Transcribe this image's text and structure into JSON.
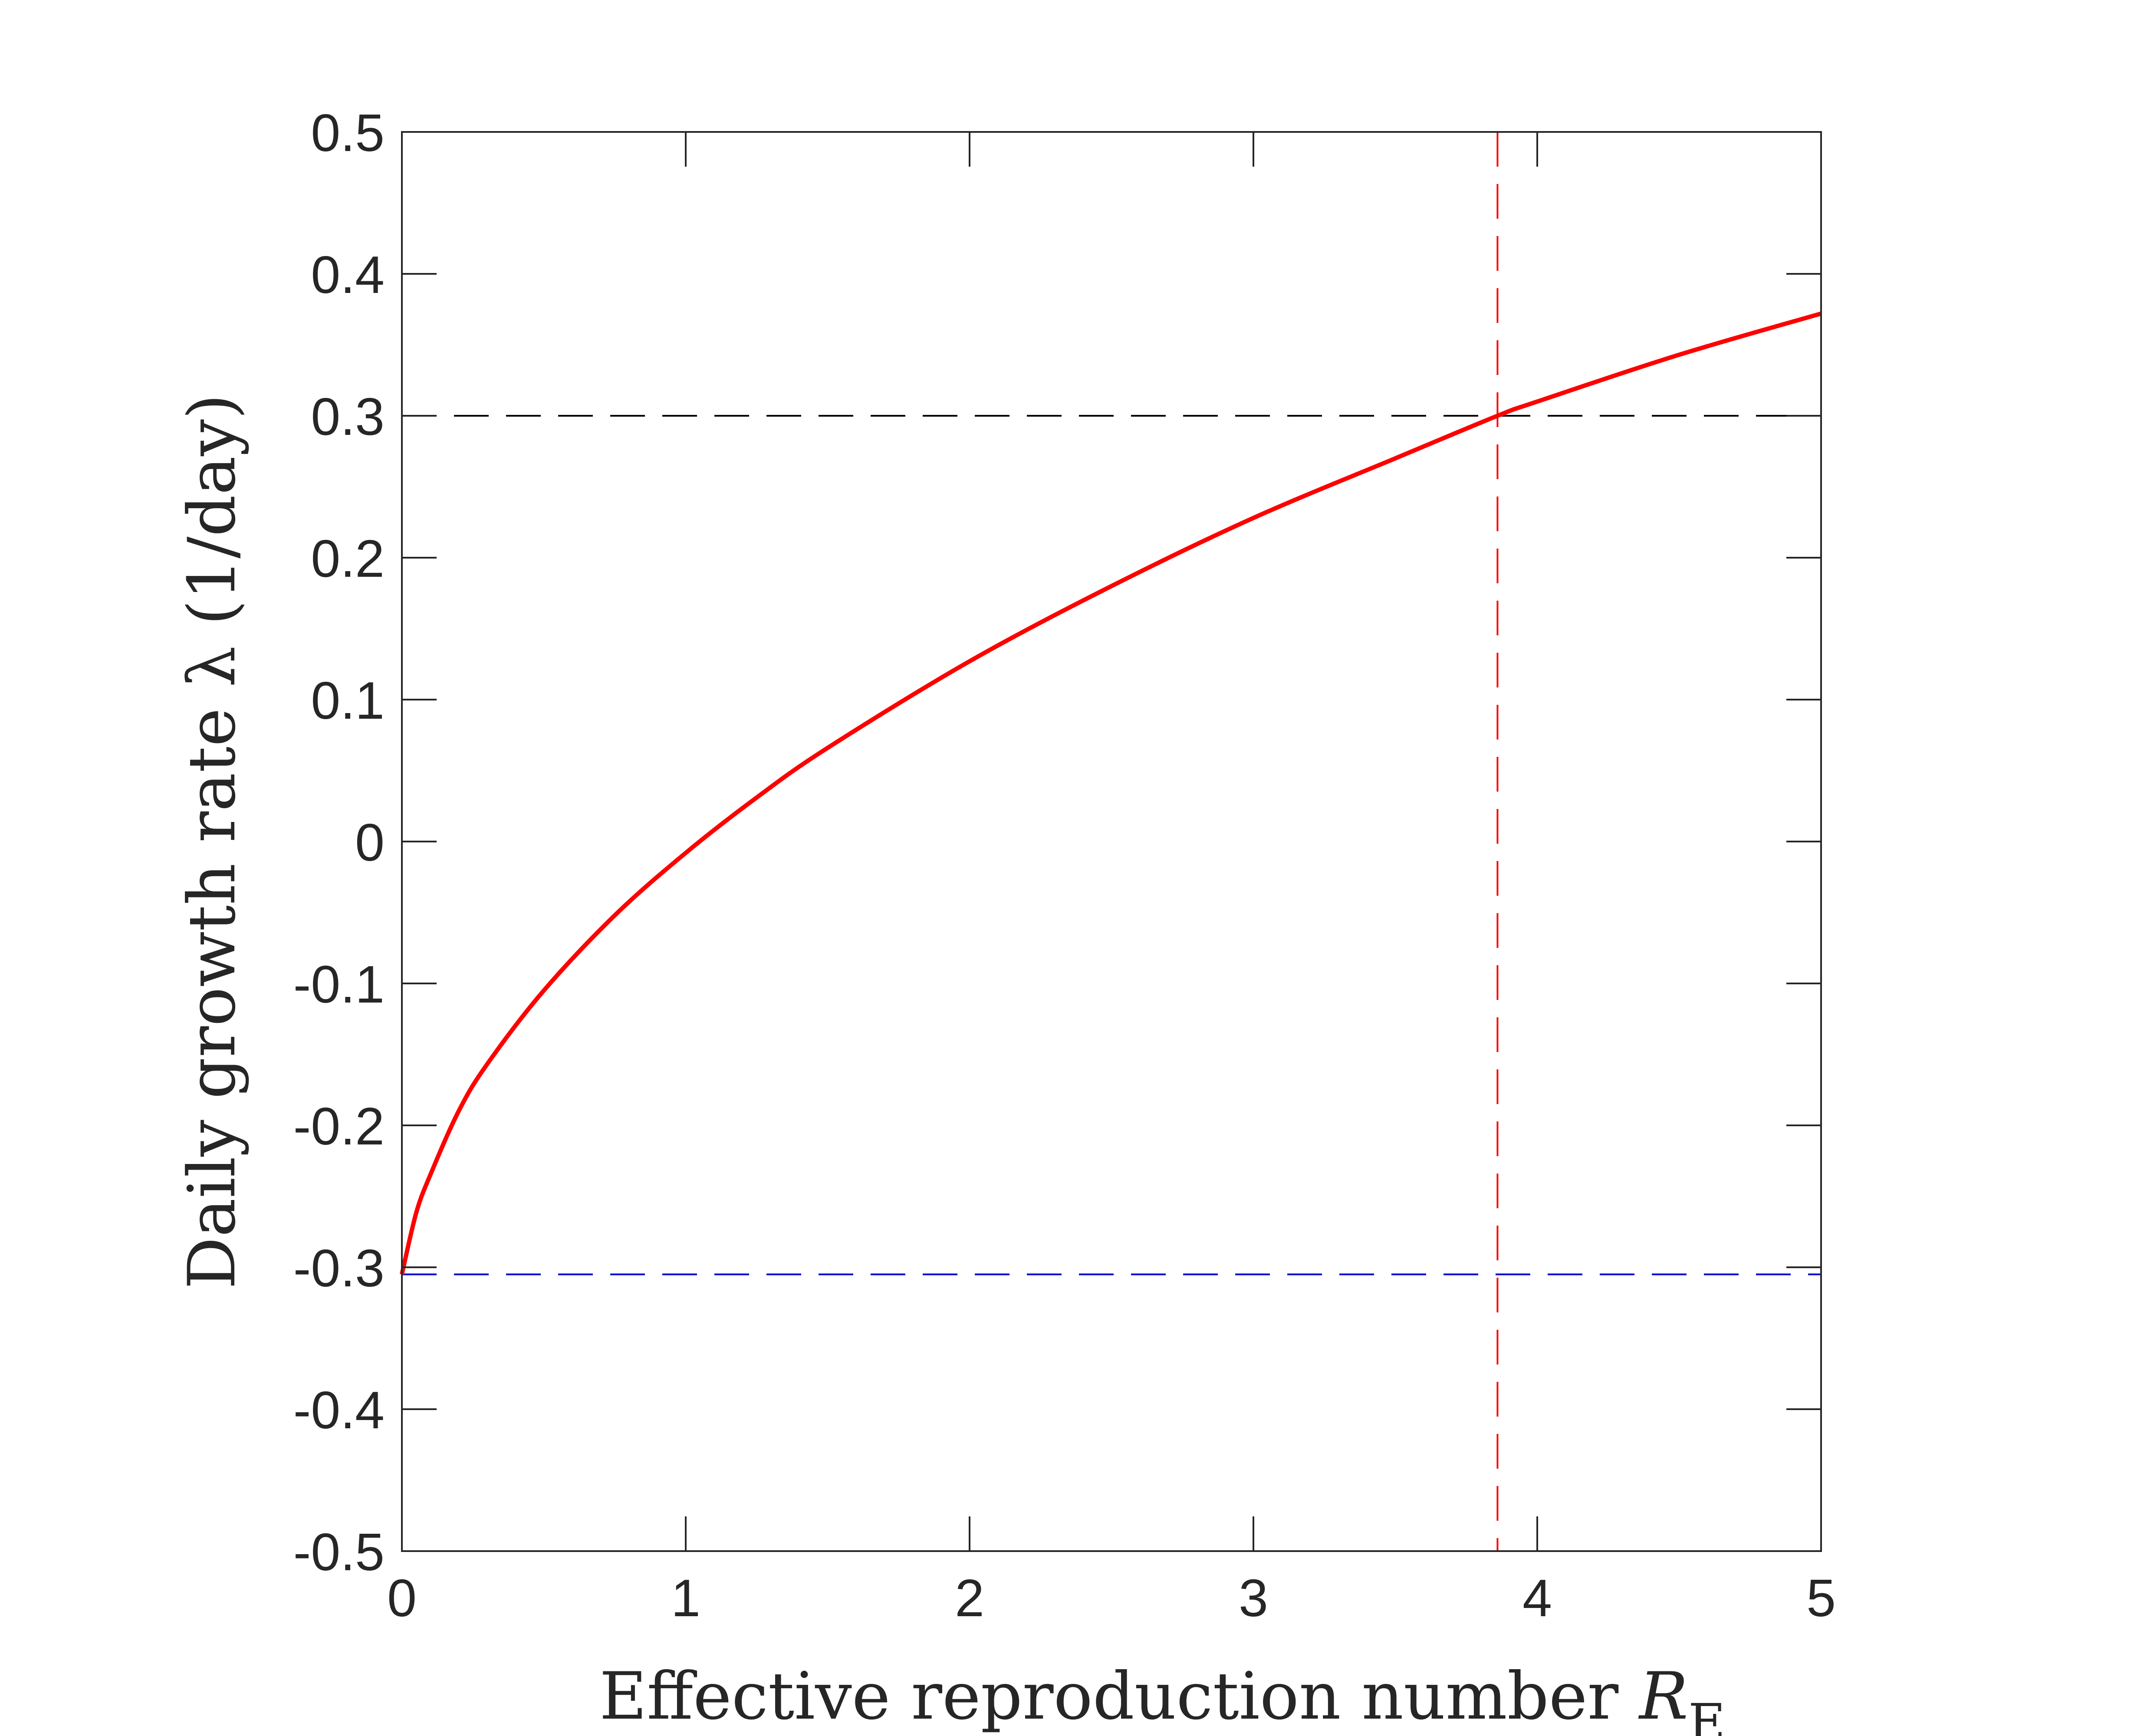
{
  "chart_data": {
    "type": "line",
    "title": "",
    "xlabel": "Effective reproduction number R_E",
    "xlabel_text": "Effective reproduction number ",
    "xlabel_symbol": "R",
    "xlabel_subscript": "E",
    "ylabel": "Daily growth rate λ (1/day)",
    "xlim": [
      0,
      5
    ],
    "ylim": [
      -0.5,
      0.5
    ],
    "xticks": [
      0,
      1,
      2,
      3,
      4,
      5
    ],
    "xtick_labels": [
      "0",
      "1",
      "2",
      "3",
      "4",
      "5"
    ],
    "yticks": [
      -0.5,
      -0.4,
      -0.3,
      -0.2,
      -0.1,
      0,
      0.1,
      0.2,
      0.3,
      0.4,
      0.5
    ],
    "ytick_labels": [
      "-0.5",
      "-0.4",
      "-0.3",
      "-0.2",
      "-0.1",
      "0",
      "0.1",
      "0.2",
      "0.3",
      "0.4",
      "0.5"
    ],
    "grid": false,
    "series": [
      {
        "color": "#ff0000",
        "style": "solid",
        "x": [
          0,
          0.05,
          0.1,
          0.2,
          0.3,
          0.5,
          0.75,
          1.0,
          1.25,
          1.5,
          2.0,
          2.5,
          3.0,
          3.5,
          3.86,
          4.0,
          4.5,
          5.0
        ],
        "y": [
          -0.305,
          -0.262,
          -0.235,
          -0.19,
          -0.157,
          -0.105,
          -0.052,
          -0.008,
          0.031,
          0.066,
          0.127,
          0.18,
          0.228,
          0.27,
          0.3,
          0.31,
          0.343,
          0.372
        ]
      }
    ],
    "reference_lines": [
      {
        "orientation": "horizontal",
        "value": 0.3,
        "color": "#000000",
        "style": "dashed"
      },
      {
        "orientation": "horizontal",
        "value": -0.305,
        "color": "#0000cc",
        "style": "dashed"
      },
      {
        "orientation": "vertical",
        "value": 3.86,
        "color": "#ff0000",
        "style": "dashed"
      }
    ]
  }
}
